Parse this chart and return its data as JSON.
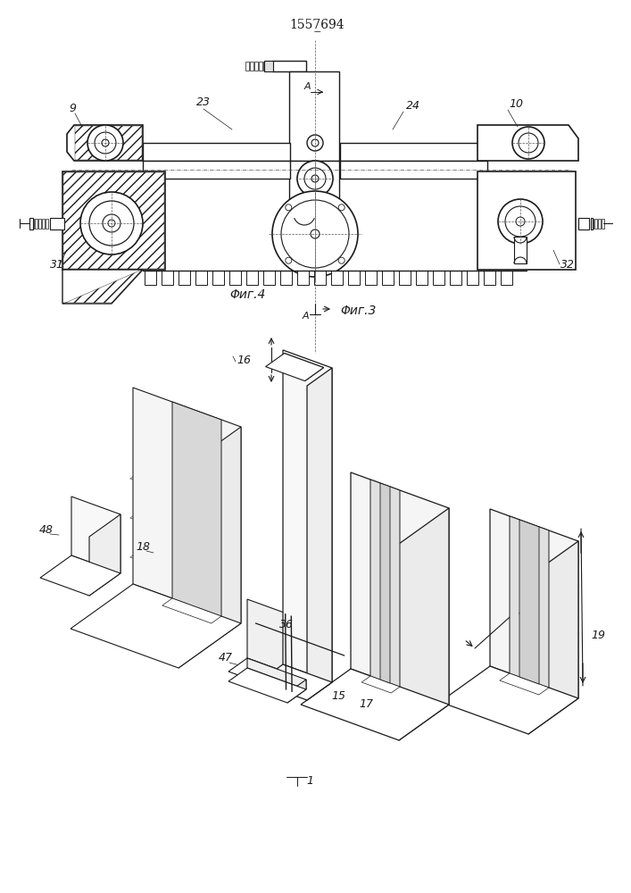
{
  "title": "1557̲694",
  "fig3_label": "Φиг.3",
  "fig4_label": "Φиг.4",
  "line_color": "#1a1a1a",
  "line_color_light": "#555555",
  "hatch_color": "#333333"
}
